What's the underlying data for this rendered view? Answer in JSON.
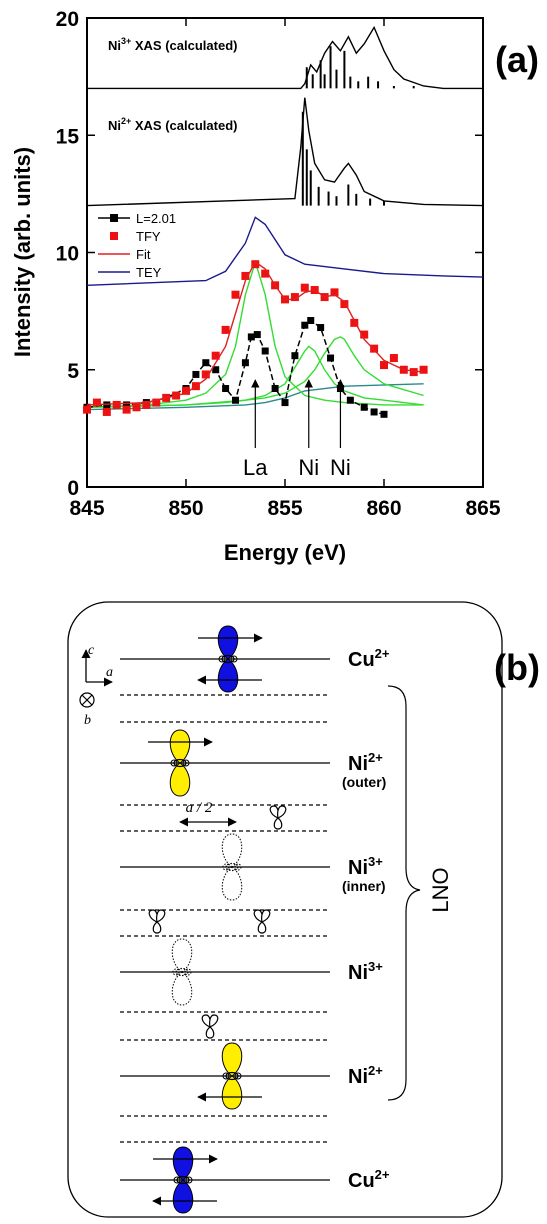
{
  "chart_data": {
    "type": "line",
    "panel_label": "(a)",
    "xlabel": "Energy (eV)",
    "ylabel": "Intensity (arb. units)",
    "xlim": [
      845,
      865
    ],
    "ylim": [
      0,
      20
    ],
    "xticks": [
      845,
      850,
      855,
      860,
      865
    ],
    "yticks": [
      0,
      5,
      10,
      15,
      20
    ],
    "legend": "upper left",
    "annotations": [
      {
        "text": "Ni",
        "sup": "3+",
        "suffix": " XAS (calculated)"
      },
      {
        "text": "Ni",
        "sup": "2+",
        "suffix": " XAS (calculated)"
      }
    ],
    "peak_labels": [
      {
        "text": "La",
        "x": 853.5
      },
      {
        "text": "Ni",
        "x": 856.2
      },
      {
        "text": "Ni",
        "x": 857.8
      }
    ],
    "series": [
      {
        "style": "line",
        "color": "#000000",
        "x": [
          845,
          855.8,
          856,
          856.3,
          856.6,
          857,
          857.4,
          857.8,
          858.2,
          858.6,
          859,
          859.5,
          860,
          860.5,
          861,
          862,
          863,
          865
        ],
        "values": [
          17,
          17,
          17.2,
          18,
          17.7,
          18.5,
          19,
          18.6,
          19.2,
          18.5,
          18.9,
          19.6,
          18.6,
          17.8,
          17.4,
          17.1,
          17,
          17
        ]
      },
      {
        "style": "sticks",
        "color": "#000000",
        "base": 17,
        "x": [
          856.1,
          856.4,
          856.8,
          857,
          857.3,
          857.6,
          858,
          858.3,
          858.7,
          859.2,
          859.7,
          860.5,
          861.5
        ],
        "values": [
          17.9,
          17.6,
          18.2,
          17.6,
          18.8,
          17.8,
          18.6,
          17.5,
          17.3,
          17.5,
          17.3,
          17.1,
          17.1
        ]
      },
      {
        "style": "line",
        "color": "#000000",
        "x": [
          845,
          855.5,
          855.8,
          856,
          856.2,
          856.5,
          857,
          857.5,
          858,
          858.2,
          858.6,
          859,
          860,
          862,
          865
        ],
        "values": [
          12,
          12.3,
          14.5,
          16.6,
          15.2,
          13.8,
          13.1,
          13,
          13.6,
          13.8,
          13.3,
          12.6,
          12.2,
          12.05,
          12
        ]
      },
      {
        "style": "sticks",
        "color": "#000000",
        "base": 12,
        "x": [
          855.9,
          856.1,
          856.3,
          856.7,
          857.2,
          857.6,
          858.2,
          858.6,
          859.3,
          860
        ],
        "values": [
          16,
          14.4,
          13.5,
          12.8,
          12.6,
          12.4,
          12.9,
          12.5,
          12.3,
          12.2
        ]
      },
      {
        "style": "line",
        "color": "#2a8a8a",
        "x": [
          845,
          850,
          853,
          854,
          855,
          856,
          858,
          862
        ],
        "values": [
          3.3,
          3.4,
          3.5,
          3.6,
          3.8,
          4.1,
          4.3,
          4.4
        ]
      },
      {
        "style": "line",
        "color": "#33dd33",
        "x": [
          845,
          848,
          850,
          851,
          852,
          852.5,
          853,
          853.5,
          854,
          854.5,
          855,
          856,
          857,
          858,
          860,
          862
        ],
        "values": [
          3.4,
          3.5,
          3.7,
          4,
          4.8,
          6,
          8.2,
          9.6,
          8.2,
          6,
          4.7,
          3.9,
          3.7,
          3.6,
          3.5,
          3.5
        ]
      },
      {
        "style": "line",
        "color": "#33dd33",
        "x": [
          845,
          850,
          852,
          853,
          854,
          855,
          855.5,
          856,
          856.2,
          856.5,
          857,
          857.5,
          858,
          859,
          860,
          862
        ],
        "values": [
          3.4,
          3.5,
          3.6,
          3.7,
          3.9,
          4.4,
          5.1,
          5.8,
          6,
          5.8,
          5,
          4.4,
          4.1,
          3.8,
          3.7,
          3.5
        ]
      },
      {
        "style": "line",
        "color": "#33dd33",
        "x": [
          845,
          850,
          853,
          854,
          855,
          856,
          856.5,
          857,
          857.5,
          857.8,
          858,
          858.5,
          859,
          860,
          862
        ],
        "values": [
          3.4,
          3.5,
          3.7,
          3.8,
          4,
          4.5,
          5,
          5.7,
          6.3,
          6.4,
          6.3,
          5.6,
          5,
          4.4,
          3.9
        ]
      },
      {
        "name": "L=2.01",
        "style": "dashed-markers",
        "color": "#000000",
        "x": [
          845,
          846,
          847,
          848,
          849,
          850,
          850.5,
          851,
          851.5,
          852,
          852.5,
          853,
          853.3,
          853.6,
          854,
          854.5,
          855,
          855.5,
          856,
          856.3,
          856.8,
          857.3,
          857.8,
          858.3,
          859,
          859.5,
          860
        ],
        "values": [
          3.4,
          3.5,
          3.5,
          3.6,
          3.8,
          4.2,
          4.8,
          5.3,
          5,
          4.2,
          3.7,
          5.3,
          6.4,
          6.5,
          5.8,
          4.2,
          3.6,
          5.6,
          6.9,
          7.1,
          6.8,
          5.5,
          4.2,
          3.7,
          3.4,
          3.2,
          3.1
        ]
      },
      {
        "name": "TFY",
        "style": "markers",
        "color": "#ee1111",
        "x": [
          845,
          845.5,
          846,
          846.5,
          847,
          847.5,
          848,
          848.5,
          849,
          849.5,
          850,
          850.5,
          851,
          851.5,
          852,
          852.5,
          853,
          853.5,
          854,
          854.5,
          855,
          855.5,
          856,
          856.5,
          857,
          857.5,
          858,
          858.5,
          859,
          859.5,
          860,
          860.5,
          861,
          861.5,
          862
        ],
        "values": [
          3.3,
          3.6,
          3.2,
          3.5,
          3.3,
          3.4,
          3.5,
          3.6,
          3.8,
          3.9,
          4.1,
          4.3,
          4.8,
          5.6,
          6.7,
          8.2,
          9,
          9.5,
          9.1,
          8.6,
          8,
          8.1,
          8.5,
          8.4,
          8.1,
          8.3,
          7.8,
          7,
          6.5,
          5.9,
          5.2,
          5.5,
          5,
          4.9,
          5
        ]
      },
      {
        "name": "Fit",
        "style": "line",
        "color": "#e02020",
        "x": [
          845,
          848,
          850,
          851,
          852,
          852.5,
          853,
          853.5,
          854,
          854.5,
          855,
          855.5,
          856,
          856.5,
          857,
          857.5,
          858,
          858.5,
          859,
          860,
          861,
          862
        ],
        "values": [
          3.5,
          3.6,
          4,
          4.6,
          6,
          7.4,
          8.8,
          9.6,
          9.3,
          8.6,
          8,
          8,
          8.3,
          8.4,
          8.1,
          8.2,
          7.9,
          7.1,
          6.3,
          5.4,
          5,
          4.9
        ]
      },
      {
        "name": "TEY",
        "style": "line",
        "color": "#1a1a8c",
        "x": [
          845,
          851,
          852,
          853,
          853.5,
          854,
          855,
          856,
          858,
          860,
          863,
          865
        ],
        "values": [
          8.6,
          8.8,
          9.2,
          10.4,
          11.5,
          11.2,
          9.9,
          9.5,
          9.3,
          9.1,
          9,
          8.95
        ]
      }
    ]
  },
  "diagram": {
    "panel_label": "(b)",
    "axes": {
      "c": "c",
      "a": "a",
      "b": "b"
    },
    "spacing": "a / 2",
    "group": "LNO",
    "layers": [
      {
        "label": "Cu",
        "sup": "2+"
      },
      {
        "label": "Ni",
        "sup": "2+",
        "sub": "(outer)"
      },
      {
        "label": "Ni",
        "sup": "3+",
        "sub": "(inner)"
      },
      {
        "label": "Ni",
        "sup": "3+"
      },
      {
        "label": "Ni",
        "sup": "2+"
      },
      {
        "label": "Cu",
        "sup": "2+"
      }
    ]
  }
}
